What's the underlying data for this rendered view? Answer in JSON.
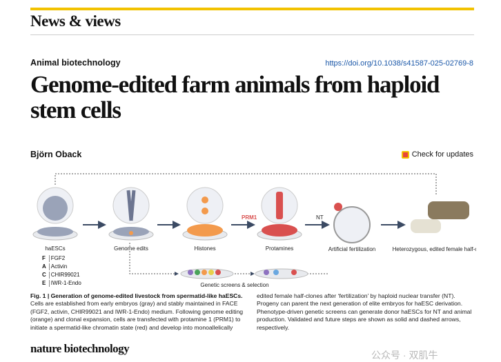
{
  "header": {
    "section": "News & views",
    "subject": "Animal biotechnology",
    "doi": "https://doi.org/10.1038/s41587-025-02769-8"
  },
  "article": {
    "title": "Genome-edited farm animals from haploid stem cells",
    "author": "Björn Oback",
    "check_updates": "Check for updates"
  },
  "figure": {
    "stages": [
      "haESCs",
      "Genome edits",
      "Histones",
      "Protamines",
      "Artificial fertilization",
      "Heterozygous, edited female half-clones"
    ],
    "arrow_labels": {
      "prm1": "PRM1",
      "nt": "NT"
    },
    "screens_label": "Genetic screens & selection",
    "face": [
      {
        "letter": "F",
        "text": "FGF2"
      },
      {
        "letter": "A",
        "text": "Activin"
      },
      {
        "letter": "C",
        "text": "CHIR99021"
      },
      {
        "letter": "E",
        "text": "IWR-1-Endo"
      }
    ],
    "colors": {
      "gray": "#9aa3b8",
      "orange": "#f39a4c",
      "red": "#d9504f",
      "arrow": "#3b4a63"
    }
  },
  "caption": {
    "label": "Fig. 1 | Generation of genome-edited livestock from spermatid-like haESCs.",
    "text": "Cells are established from early embryos (gray) and stably maintained in FACE (FGF2, activin, CHIR99021 and IWR-1-Endo) medium. Following genome editing (orange) and clonal expansion, cells are transfected with protamine 1 (PRM1) to initiate a spermatid-like chromatin state (red) and develop into monoallelically edited female half-clones after ‘fertilization’ by haploid nuclear transfer (NT). Progeny can parent the next generation of elite embryos for haESC derivation. Phenotype-driven genetic screens can generate donor haESCs for NT and animal production. Validated and future steps are shown as solid and dashed arrows, respectively."
  },
  "footer": {
    "journal": "nature biotechnology",
    "watermark": "公众号 · 双肌牛"
  }
}
